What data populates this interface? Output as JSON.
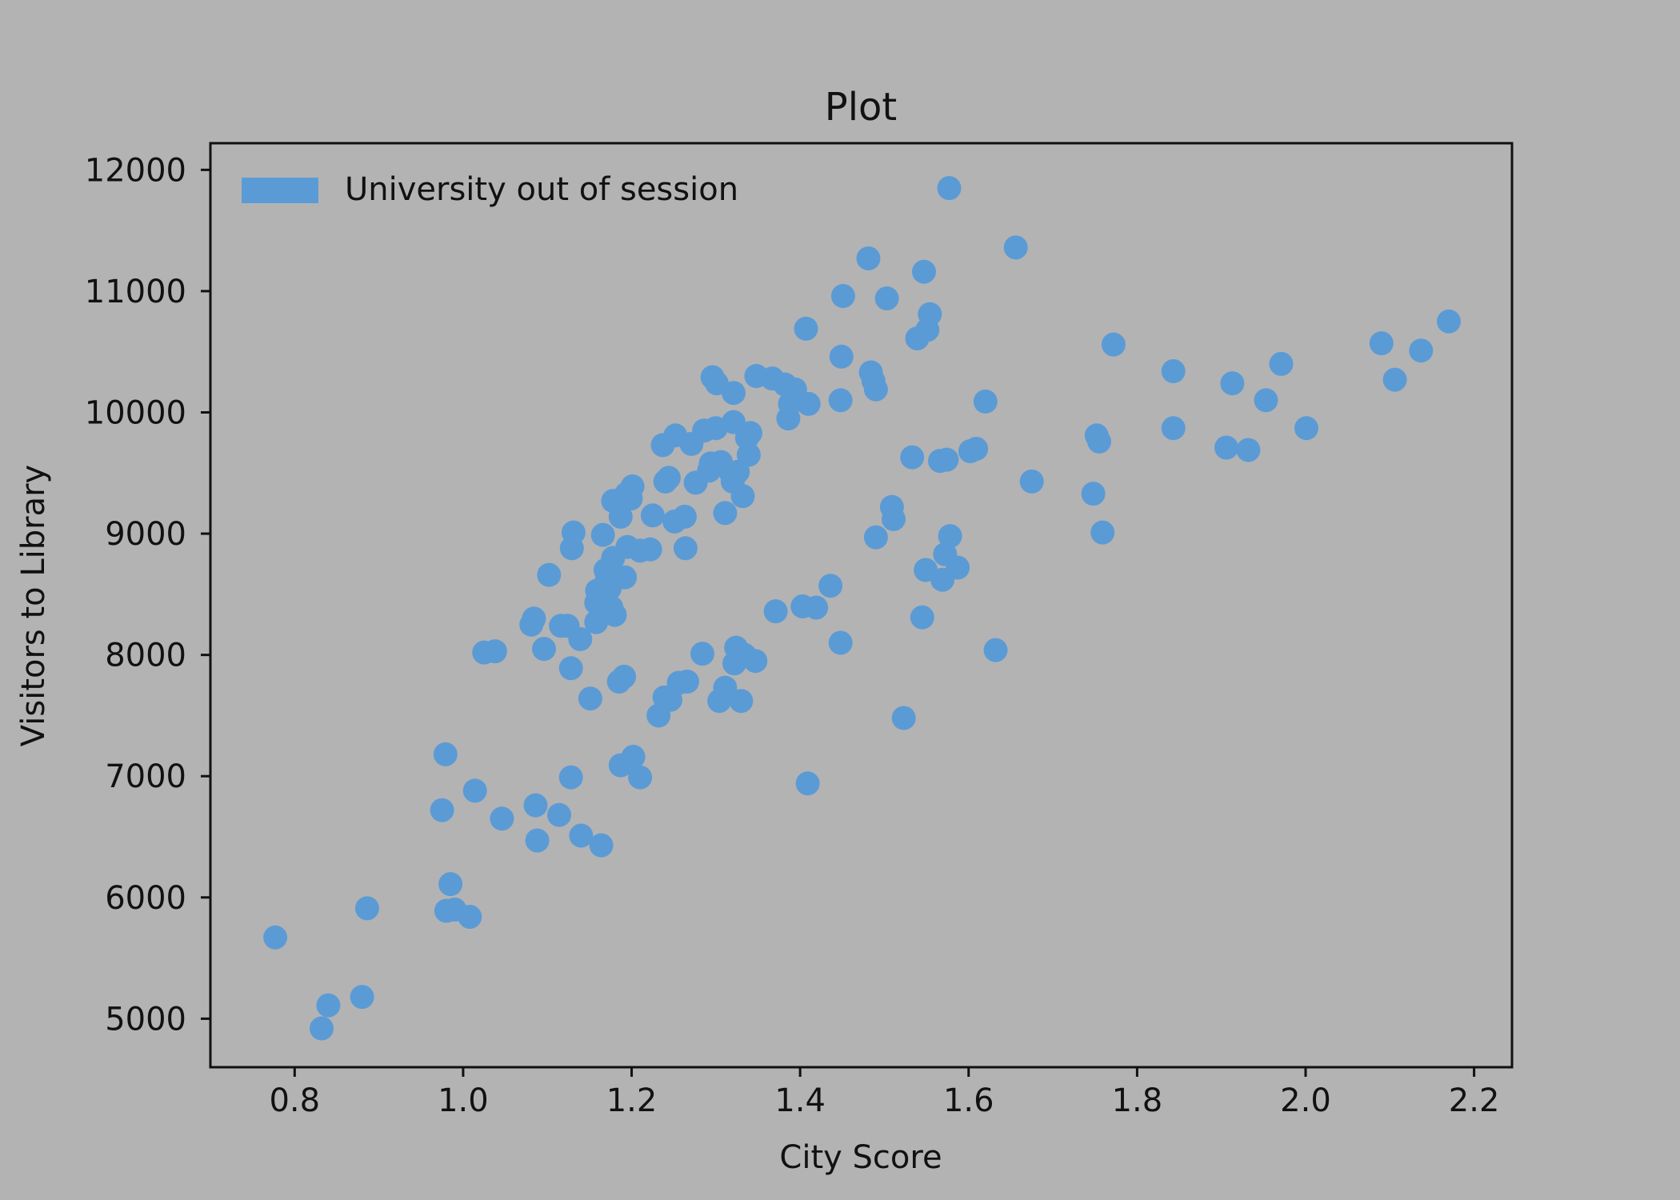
{
  "chart_data": {
    "type": "scatter",
    "title": "Plot",
    "xlabel": "City Score",
    "ylabel": "Visitors to Library",
    "xlim": [
      0.7,
      2.245
    ],
    "ylim": [
      4600,
      12220
    ],
    "xticks": [
      0.8,
      1.0,
      1.2,
      1.4,
      1.6,
      1.8,
      2.0,
      2.2
    ],
    "xtick_labels": [
      "0.8",
      "1.0",
      "1.2",
      "1.4",
      "1.6",
      "1.8",
      "2.0",
      "2.2"
    ],
    "yticks": [
      5000,
      6000,
      7000,
      8000,
      9000,
      10000,
      11000,
      12000
    ],
    "ytick_labels": [
      "5000",
      "6000",
      "7000",
      "8000",
      "9000",
      "10000",
      "11000",
      "12000"
    ],
    "grid": false,
    "legend_position": "top-left",
    "background_color": "#b3b3b3",
    "series": [
      {
        "name": "University out of session",
        "color": "#5b9bd5",
        "points": [
          [
            0.777,
            5670
          ],
          [
            0.832,
            4920
          ],
          [
            0.84,
            5110
          ],
          [
            0.88,
            5180
          ],
          [
            0.886,
            5910
          ],
          [
            0.975,
            6720
          ],
          [
            0.979,
            7180
          ],
          [
            0.98,
            5890
          ],
          [
            0.985,
            6110
          ],
          [
            0.99,
            5900
          ],
          [
            1.008,
            5840
          ],
          [
            1.014,
            6880
          ],
          [
            1.025,
            8020
          ],
          [
            1.038,
            8030
          ],
          [
            1.046,
            6650
          ],
          [
            1.081,
            8250
          ],
          [
            1.084,
            8300
          ],
          [
            1.086,
            6760
          ],
          [
            1.088,
            6470
          ],
          [
            1.096,
            8050
          ],
          [
            1.102,
            8660
          ],
          [
            1.114,
            6680
          ],
          [
            1.116,
            8240
          ],
          [
            1.124,
            8240
          ],
          [
            1.128,
            6990
          ],
          [
            1.128,
            7890
          ],
          [
            1.129,
            8880
          ],
          [
            1.131,
            9010
          ],
          [
            1.139,
            8130
          ],
          [
            1.14,
            6510
          ],
          [
            1.151,
            7640
          ],
          [
            1.158,
            8270
          ],
          [
            1.158,
            8430
          ],
          [
            1.159,
            8530
          ],
          [
            1.164,
            6430
          ],
          [
            1.166,
            8990
          ],
          [
            1.169,
            8700
          ],
          [
            1.171,
            8630
          ],
          [
            1.174,
            8550
          ],
          [
            1.176,
            8390
          ],
          [
            1.178,
            9270
          ],
          [
            1.178,
            8800
          ],
          [
            1.18,
            8330
          ],
          [
            1.185,
            7780
          ],
          [
            1.187,
            7090
          ],
          [
            1.187,
            9140
          ],
          [
            1.19,
            9290
          ],
          [
            1.191,
            7820
          ],
          [
            1.192,
            8640
          ],
          [
            1.194,
            9330
          ],
          [
            1.195,
            8890
          ],
          [
            1.199,
            9290
          ],
          [
            1.201,
            9390
          ],
          [
            1.202,
            7160
          ],
          [
            1.21,
            6990
          ],
          [
            1.21,
            8860
          ],
          [
            1.222,
            8870
          ],
          [
            1.225,
            9150
          ],
          [
            1.232,
            7500
          ],
          [
            1.237,
            9730
          ],
          [
            1.239,
            7650
          ],
          [
            1.24,
            9430
          ],
          [
            1.244,
            9460
          ],
          [
            1.246,
            7630
          ],
          [
            1.251,
            9100
          ],
          [
            1.252,
            9810
          ],
          [
            1.256,
            7770
          ],
          [
            1.263,
            9140
          ],
          [
            1.264,
            8880
          ],
          [
            1.266,
            7780
          ],
          [
            1.271,
            9740
          ],
          [
            1.276,
            9420
          ],
          [
            1.284,
            8010
          ],
          [
            1.286,
            9850
          ],
          [
            1.292,
            9520
          ],
          [
            1.294,
            9580
          ],
          [
            1.296,
            10290
          ],
          [
            1.3,
            9870
          ],
          [
            1.301,
            10240
          ],
          [
            1.304,
            7620
          ],
          [
            1.306,
            9590
          ],
          [
            1.311,
            7730
          ],
          [
            1.311,
            9170
          ],
          [
            1.318,
            9500
          ],
          [
            1.32,
            9430
          ],
          [
            1.321,
            10160
          ],
          [
            1.321,
            9920
          ],
          [
            1.322,
            7930
          ],
          [
            1.324,
            8060
          ],
          [
            1.326,
            9510
          ],
          [
            1.33,
            7620
          ],
          [
            1.332,
            9310
          ],
          [
            1.334,
            8000
          ],
          [
            1.337,
            9790
          ],
          [
            1.339,
            9650
          ],
          [
            1.341,
            9830
          ],
          [
            1.347,
            7950
          ],
          [
            1.348,
            10300
          ],
          [
            1.367,
            10280
          ],
          [
            1.371,
            8360
          ],
          [
            1.382,
            10230
          ],
          [
            1.386,
            9950
          ],
          [
            1.388,
            10070
          ],
          [
            1.391,
            10110
          ],
          [
            1.394,
            10190
          ],
          [
            1.403,
            8400
          ],
          [
            1.407,
            10690
          ],
          [
            1.409,
            6940
          ],
          [
            1.41,
            10070
          ],
          [
            1.419,
            8390
          ],
          [
            1.436,
            8570
          ],
          [
            1.448,
            10100
          ],
          [
            1.448,
            8100
          ],
          [
            1.449,
            10460
          ],
          [
            1.451,
            10960
          ],
          [
            1.481,
            11270
          ],
          [
            1.484,
            10330
          ],
          [
            1.487,
            10260
          ],
          [
            1.49,
            10190
          ],
          [
            1.49,
            8970
          ],
          [
            1.503,
            10940
          ],
          [
            1.509,
            9220
          ],
          [
            1.511,
            9120
          ],
          [
            1.523,
            7480
          ],
          [
            1.533,
            9630
          ],
          [
            1.539,
            10610
          ],
          [
            1.545,
            8310
          ],
          [
            1.547,
            11160
          ],
          [
            1.549,
            8700
          ],
          [
            1.551,
            10680
          ],
          [
            1.554,
            10810
          ],
          [
            1.566,
            9600
          ],
          [
            1.569,
            8620
          ],
          [
            1.572,
            8830
          ],
          [
            1.574,
            9610
          ],
          [
            1.577,
            11850
          ],
          [
            1.578,
            8980
          ],
          [
            1.587,
            8720
          ],
          [
            1.602,
            9680
          ],
          [
            1.609,
            9700
          ],
          [
            1.62,
            10090
          ],
          [
            1.632,
            8040
          ],
          [
            1.656,
            11360
          ],
          [
            1.675,
            9430
          ],
          [
            1.748,
            9330
          ],
          [
            1.752,
            9810
          ],
          [
            1.755,
            9760
          ],
          [
            1.759,
            9010
          ],
          [
            1.772,
            10560
          ],
          [
            1.843,
            10340
          ],
          [
            1.843,
            9870
          ],
          [
            1.906,
            9710
          ],
          [
            1.913,
            10240
          ],
          [
            1.932,
            9690
          ],
          [
            1.953,
            10100
          ],
          [
            1.971,
            10400
          ],
          [
            2.001,
            9870
          ],
          [
            2.09,
            10570
          ],
          [
            2.106,
            10270
          ],
          [
            2.137,
            10510
          ],
          [
            2.17,
            10750
          ]
        ]
      }
    ]
  }
}
